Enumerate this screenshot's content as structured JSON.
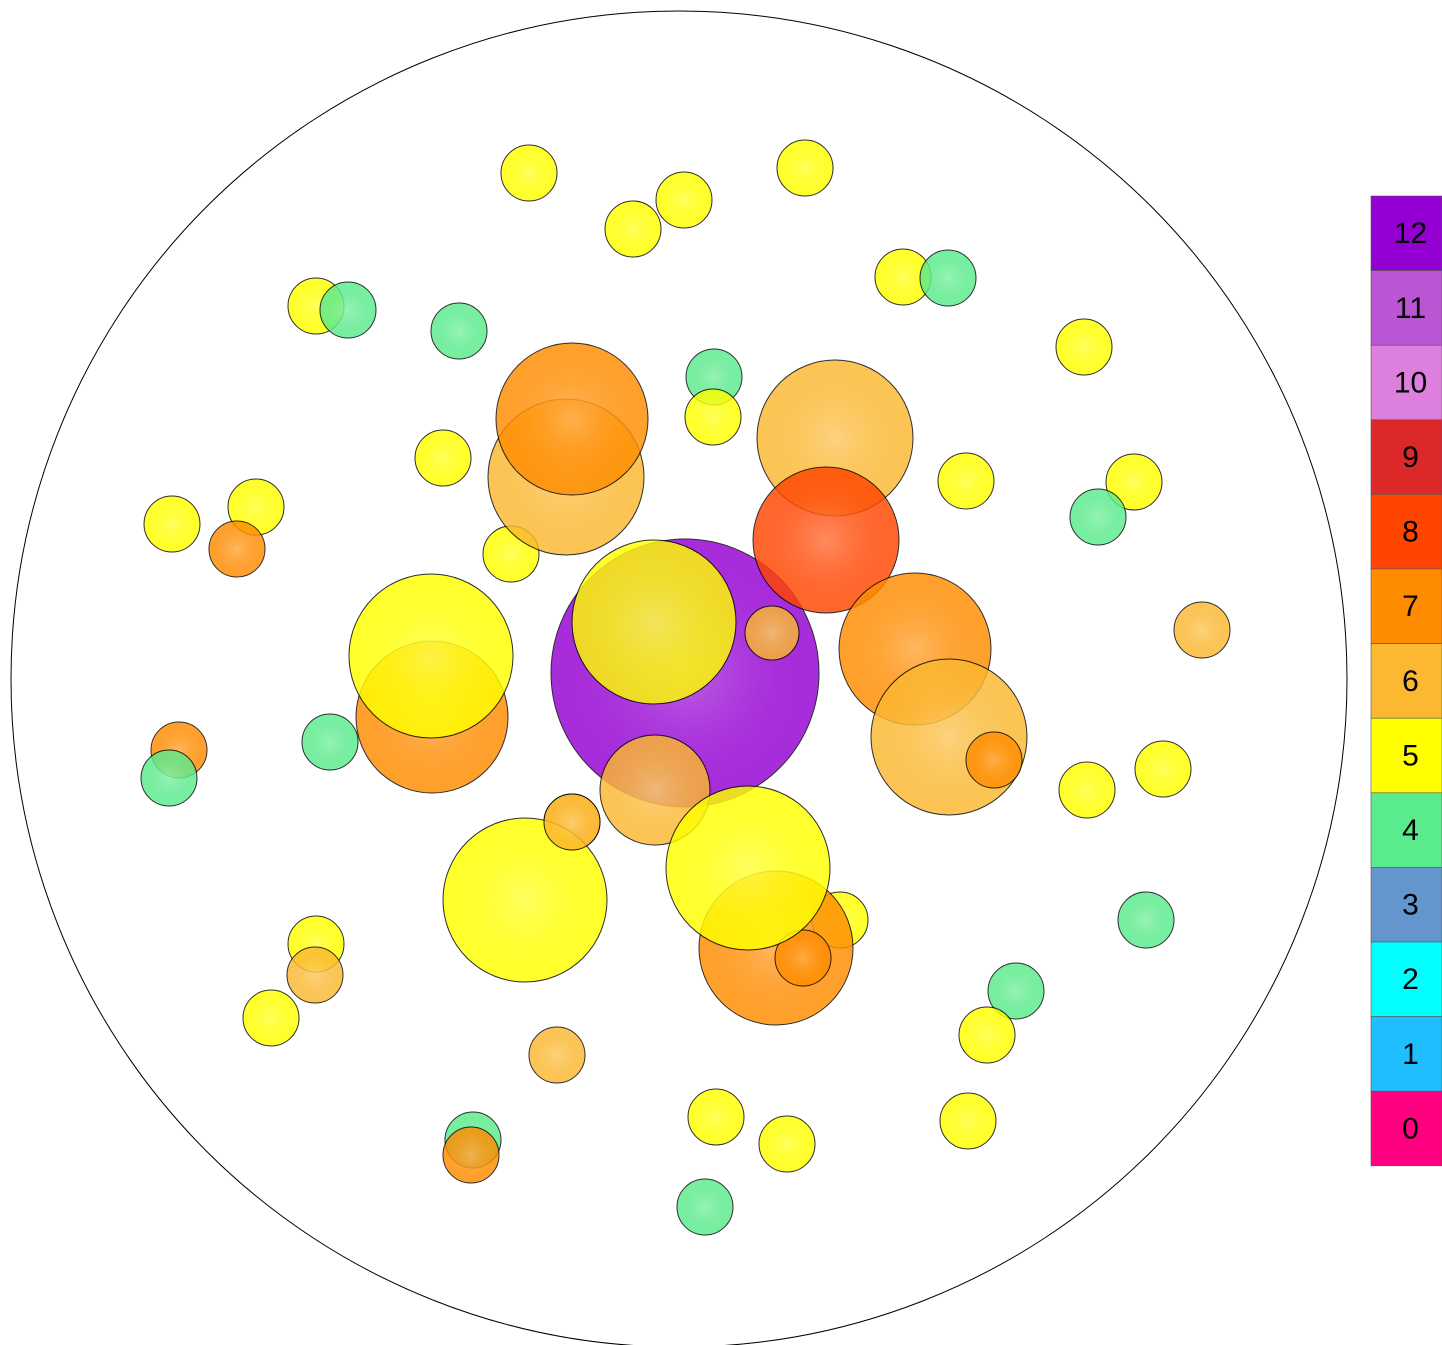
{
  "legend": [
    {
      "label": "12",
      "color": "#9400d3"
    },
    {
      "label": "11",
      "color": "#ba55d3"
    },
    {
      "label": "10",
      "color": "#dd80dd"
    },
    {
      "label": "9",
      "color": "#dc2828"
    },
    {
      "label": "8",
      "color": "#ff4500"
    },
    {
      "label": "7",
      "color": "#ff8c00"
    },
    {
      "label": "6",
      "color": "#fbb830"
    },
    {
      "label": "5",
      "color": "#ffff00"
    },
    {
      "label": "4",
      "color": "#5aeb8c"
    },
    {
      "label": "3",
      "color": "#6495cd"
    },
    {
      "label": "2",
      "color": "#00ffff"
    },
    {
      "label": "1",
      "color": "#1ebeff"
    },
    {
      "label": "0",
      "color": "#ff0080"
    }
  ],
  "spheres": [
    12,
    6,
    5,
    5,
    5,
    5,
    5,
    4,
    5,
    4,
    4,
    5,
    4,
    5,
    5,
    5,
    5,
    4,
    5,
    5,
    7,
    5,
    6,
    4,
    7,
    5,
    5,
    4,
    6,
    5,
    4,
    5,
    6,
    4,
    5,
    5,
    6,
    5,
    5,
    5,
    4,
    7,
    4,
    6,
    7,
    6,
    8,
    7,
    7,
    6,
    6,
    5,
    5,
    7,
    5,
    6,
    7,
    5,
    7
  ]
}
